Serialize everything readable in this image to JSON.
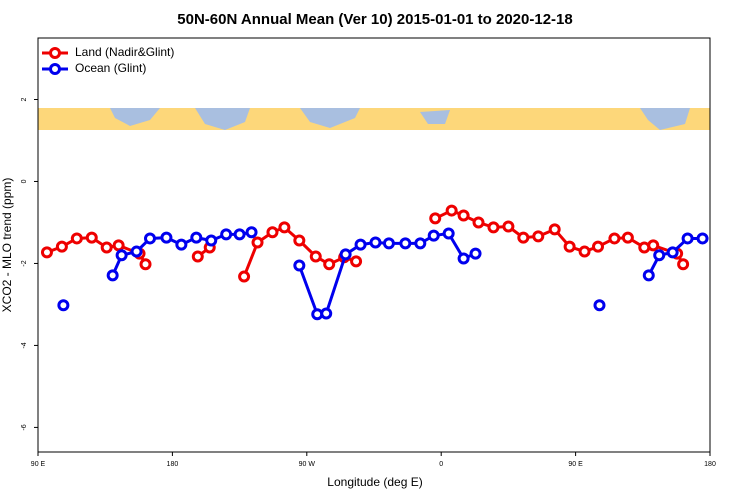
{
  "chart_data": {
    "type": "line",
    "title": "50N-60N Annual Mean (Ver 10)   2015-01-01 to 2020-12-18",
    "x_label": "Longitude (deg E)",
    "y_label": "XCO2 - MLO trend (ppm)",
    "xlim": [
      90,
      540
    ],
    "xticks": [
      {
        "value": 90,
        "label": "90 E"
      },
      180,
      {
        "value": 270,
        "label": "90 W"
      },
      {
        "value": 360,
        "label": "0"
      },
      {
        "value": 450,
        "label": "90 E"
      },
      {
        "value": 540,
        "label": "180"
      }
    ],
    "ylim": [
      -6.6,
      3.5
    ],
    "yticks": [
      2,
      0,
      -2,
      -4,
      -6
    ],
    "legend": "top-left",
    "series": [
      {
        "name": "Land (Nadir&Glint)",
        "color": "#ee0000",
        "x": [
          96,
          106,
          116,
          126,
          136,
          144,
          158,
          162,
          null,
          197,
          205,
          null,
          228,
          237,
          247,
          255,
          265,
          276,
          285,
          295,
          303,
          null,
          356,
          367,
          375,
          385,
          395,
          405,
          415,
          425,
          436,
          446,
          456,
          465,
          476,
          485,
          496,
          502,
          518,
          522
        ],
        "values": [
          -1.73,
          -1.59,
          -1.39,
          -1.37,
          -1.61,
          -1.56,
          -1.76,
          -2.02,
          null,
          -1.83,
          -1.61,
          null,
          -2.32,
          -1.49,
          -1.24,
          -1.12,
          -1.44,
          -1.83,
          -2.02,
          -1.85,
          -1.95,
          null,
          -0.9,
          -0.71,
          -0.83,
          -1.0,
          -1.12,
          -1.1,
          -1.37,
          -1.34,
          -1.17,
          -1.59,
          -1.71,
          -1.59,
          -1.39,
          -1.37,
          -1.61,
          -1.56,
          -1.76,
          -2.02
        ]
      },
      {
        "name": "Ocean (Glint)",
        "color": "#0000ee",
        "x": [
          107,
          null,
          140,
          146,
          156,
          165,
          176,
          186,
          196,
          206,
          216,
          225,
          233,
          null,
          265,
          277,
          283,
          296,
          306,
          316,
          325,
          336,
          346,
          355,
          365,
          375,
          383,
          null,
          466,
          null,
          499,
          506,
          515,
          525,
          535
        ],
        "values": [
          -3.02,
          null,
          -2.29,
          -1.8,
          -1.71,
          -1.39,
          -1.37,
          -1.54,
          -1.37,
          -1.44,
          -1.29,
          -1.29,
          -1.24,
          null,
          -2.05,
          -3.24,
          -3.22,
          -1.78,
          -1.54,
          -1.49,
          -1.51,
          -1.51,
          -1.51,
          -1.32,
          -1.27,
          -1.88,
          -1.76,
          null,
          -3.02,
          null,
          -2.29,
          -1.8,
          -1.73,
          -1.39,
          -1.39
        ]
      }
    ]
  }
}
